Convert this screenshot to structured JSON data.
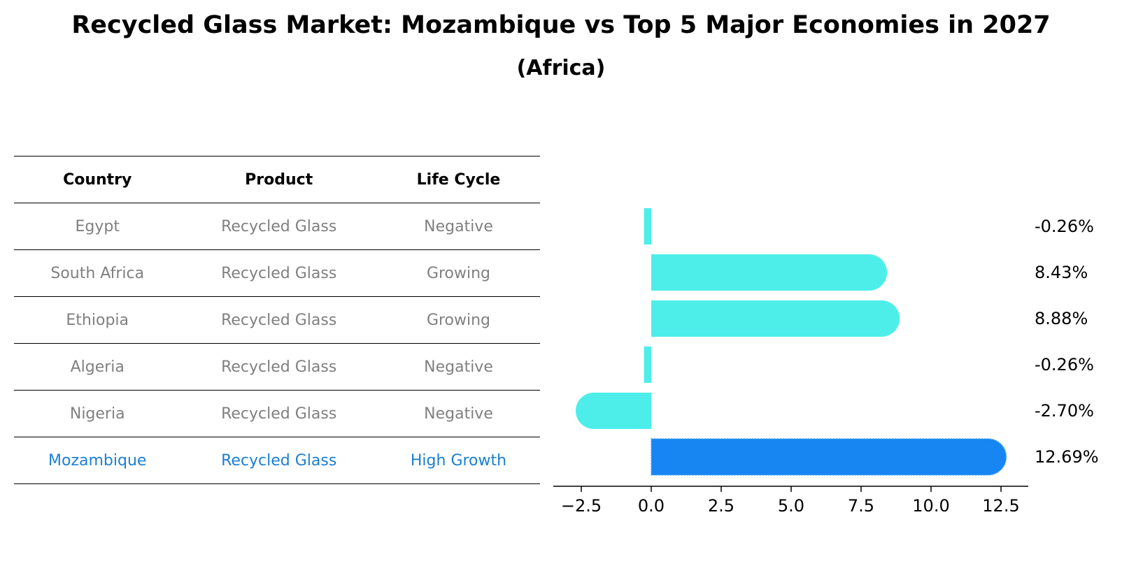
{
  "chart_data": {
    "type": "bar",
    "title": "Recycled Glass Market: Mozambique vs Top 5 Major Economies in 2027",
    "subtitle": "(Africa)",
    "table_headers": [
      "Country",
      "Product",
      "Life Cycle"
    ],
    "rows": [
      {
        "country": "Egypt",
        "product": "Recycled Glass",
        "life_cycle": "Negative",
        "value": -0.26,
        "label": "-0.26%"
      },
      {
        "country": "South Africa",
        "product": "Recycled Glass",
        "life_cycle": "Growing",
        "value": 8.43,
        "label": "8.43%"
      },
      {
        "country": "Ethiopia",
        "product": "Recycled Glass",
        "life_cycle": "Growing",
        "value": 8.88,
        "label": "8.88%"
      },
      {
        "country": "Algeria",
        "product": "Recycled Glass",
        "life_cycle": "Negative",
        "value": -0.26,
        "label": "-0.26%"
      },
      {
        "country": "Nigeria",
        "product": "Recycled Glass",
        "life_cycle": "Negative",
        "value": -2.7,
        "label": "-2.70%"
      },
      {
        "country": "Mozambique",
        "product": "Recycled Glass",
        "life_cycle": "High Growth",
        "value": 12.69,
        "label": "12.69%"
      }
    ],
    "highlight": "Mozambique",
    "xlim": [
      -3.5,
      13.5
    ],
    "xticks": [
      -2.5,
      0.0,
      2.5,
      5.0,
      7.5,
      10.0,
      12.5
    ],
    "xtick_labels": [
      "−2.5",
      "0.0",
      "2.5",
      "5.0",
      "7.5",
      "10.0",
      "12.5"
    ],
    "colors": {
      "bar": "#4deeea",
      "highlight_bar": "#1785f2",
      "highlight_text": "#1a7fd4",
      "muted_text": "#808080"
    }
  }
}
